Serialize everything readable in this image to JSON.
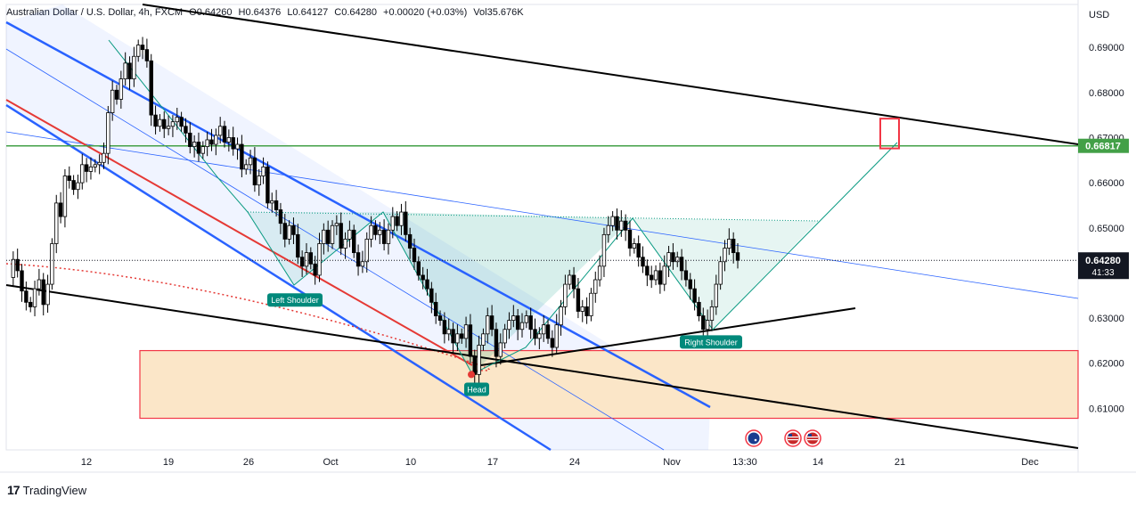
{
  "header": {
    "symbol": "Australian Dollar / U.S. Dollar, 4h, FXCM",
    "open": "O0.64260",
    "high": "H0.64376",
    "low": "L0.64127",
    "close": "C0.64280",
    "change": "+0.00020 (+0.03%)",
    "volume": "Vol35.676K"
  },
  "brand": {
    "name": "TradingView",
    "logo": "17"
  },
  "chart_data": {
    "type": "line",
    "currency": "USD",
    "ylim": [
      0.6008,
      0.6995
    ],
    "price_ticks": [
      "0.69000",
      "0.68000",
      "0.67000",
      "0.66000",
      "0.65000",
      "0.63000",
      "0.62000",
      "0.61000"
    ],
    "x_ticks": [
      "12",
      "19",
      "26",
      "Oct",
      "10",
      "17",
      "24",
      "Nov",
      "13:30",
      "14",
      "21",
      "Dec"
    ],
    "last_price": {
      "value": 0.6428,
      "label": "0.64280",
      "countdown": "41:33"
    },
    "level": {
      "value": 0.66817,
      "label": "0.66817"
    },
    "price_path": [
      0.639,
      0.643,
      0.6405,
      0.636,
      0.6335,
      0.6325,
      0.6365,
      0.6385,
      0.633,
      0.6375,
      0.6465,
      0.6555,
      0.6525,
      0.6615,
      0.6605,
      0.6585,
      0.66,
      0.664,
      0.6625,
      0.6635,
      0.664,
      0.6645,
      0.6665,
      0.6755,
      0.6805,
      0.6785,
      0.683,
      0.6865,
      0.683,
      0.688,
      0.6905,
      0.6895,
      0.687,
      0.675,
      0.6725,
      0.674,
      0.672,
      0.6725,
      0.6735,
      0.6745,
      0.6725,
      0.671,
      0.668,
      0.669,
      0.6665,
      0.668,
      0.6695,
      0.6685,
      0.6705,
      0.6725,
      0.669,
      0.67,
      0.6675,
      0.6685,
      0.663,
      0.664,
      0.6655,
      0.6595,
      0.6615,
      0.6635,
      0.6555,
      0.656,
      0.654,
      0.651,
      0.6475,
      0.6505,
      0.6485,
      0.6435,
      0.6415,
      0.6445,
      0.642,
      0.6395,
      0.6465,
      0.6495,
      0.6465,
      0.6505,
      0.651,
      0.6455,
      0.6475,
      0.6495,
      0.6445,
      0.6415,
      0.6425,
      0.6475,
      0.6505,
      0.6485,
      0.6495,
      0.6465,
      0.6495,
      0.6525,
      0.6505,
      0.6535,
      0.6485,
      0.6455,
      0.6425,
      0.6395,
      0.6385,
      0.6365,
      0.6335,
      0.6305,
      0.6295,
      0.6265,
      0.6275,
      0.6245,
      0.6265,
      0.6255,
      0.6285,
      0.6215,
      0.6175,
      0.624,
      0.6265,
      0.6305,
      0.6275,
      0.6215,
      0.6245,
      0.6275,
      0.6295,
      0.6305,
      0.6275,
      0.629,
      0.6305,
      0.6275,
      0.6255,
      0.6265,
      0.6285,
      0.6255,
      0.6235,
      0.6285,
      0.6325,
      0.6375,
      0.6395,
      0.6365,
      0.6315,
      0.6325,
      0.6305,
      0.6355,
      0.6385,
      0.6415,
      0.6485,
      0.6505,
      0.6525,
      0.6495,
      0.6515,
      0.6495,
      0.6455,
      0.6465,
      0.6435,
      0.6415,
      0.6395,
      0.6385,
      0.6405,
      0.6375,
      0.6415,
      0.6445,
      0.6425,
      0.6435,
      0.6405,
      0.6385,
      0.6365,
      0.6335,
      0.6305,
      0.6275,
      0.6295,
      0.6325,
      0.6375,
      0.6425,
      0.6455,
      0.6475,
      0.6445,
      0.6428
    ],
    "annotations": [
      {
        "label": "Left Shoulder",
        "price": 0.6355
      },
      {
        "label": "Head",
        "price": 0.6157
      },
      {
        "label": "Right Shoulder",
        "price": 0.6262
      }
    ],
    "zone": {
      "top": 0.6228,
      "bottom": 0.6078
    },
    "target_box": {
      "top": 0.6742,
      "bottom": 0.6676
    },
    "event_flags": [
      {
        "icon": "australia-flag-icon"
      },
      {
        "icon": "usa-flag-icon"
      },
      {
        "icon": "usa-flag-icon"
      }
    ],
    "colors": {
      "channel": "#2962ff",
      "trend": "#000000",
      "level": "#43a047",
      "pattern": "#089981",
      "zone_fill": "#fbe6c8",
      "zone_stroke": "#f23645",
      "label_bg": "#00897b",
      "candle_up": "#ffffff",
      "candle_down": "#000000"
    }
  }
}
